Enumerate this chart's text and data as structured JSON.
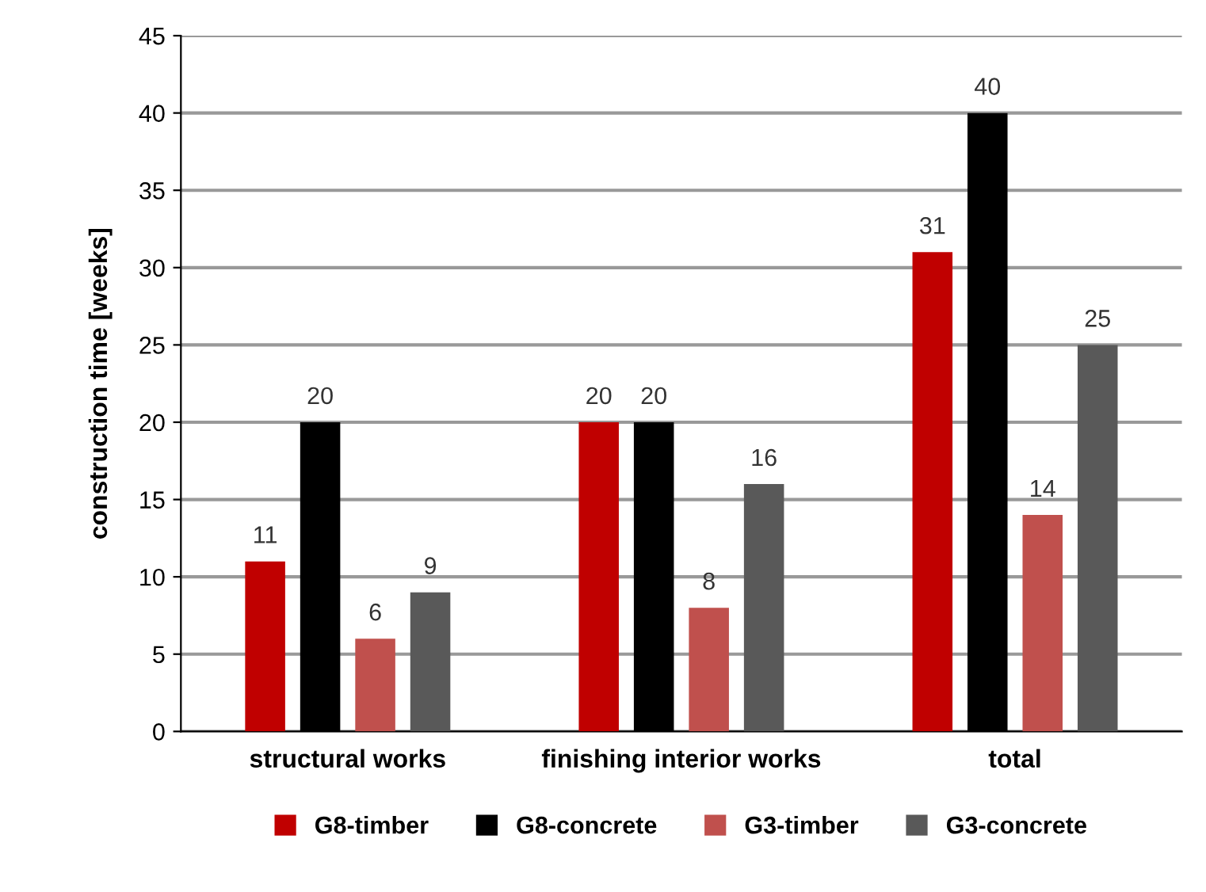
{
  "chart_data": {
    "type": "bar",
    "ylabel": "construction time [weeks]",
    "categories": [
      "structural works",
      "finishing interior works",
      "total"
    ],
    "series": [
      {
        "name": "G8-timber",
        "color": "#c00000",
        "values": [
          11,
          20,
          31
        ]
      },
      {
        "name": "G8-concrete",
        "color": "#000000",
        "values": [
          20,
          20,
          40
        ]
      },
      {
        "name": "G3-timber",
        "color": "#c0504d",
        "values": [
          6,
          8,
          14
        ]
      },
      {
        "name": "G3-concrete",
        "color": "#595959",
        "values": [
          9,
          16,
          25
        ]
      }
    ],
    "ylim": [
      0,
      45
    ],
    "yticks": [
      0,
      5,
      10,
      15,
      20,
      25,
      30,
      35,
      40,
      45
    ],
    "grid": "y",
    "legend": "bottom",
    "data_labels": true
  }
}
